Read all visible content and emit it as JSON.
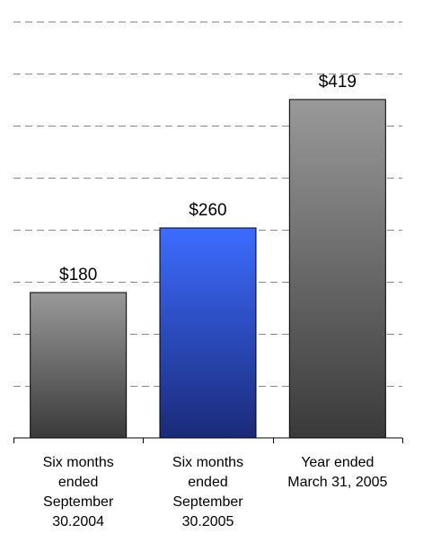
{
  "chart_data": {
    "type": "bar",
    "categories": [
      "Six months\nended\nSeptember\n30.2004",
      "Six months\nended\nSeptember\n30.2005",
      "Year ended\nMarch 31, 2005"
    ],
    "values": [
      180,
      260,
      419
    ],
    "value_labels": [
      "$180",
      "$260",
      "$419"
    ],
    "bar_colors": [
      [
        "#999999",
        "#3a3a3a"
      ],
      [
        "#3d6cff",
        "#1a2a78"
      ],
      [
        "#999999",
        "#3a3a3a"
      ]
    ],
    "ylim": [
      0,
      450
    ],
    "grid": true,
    "gridline_style": "dashed",
    "legend": "none"
  }
}
